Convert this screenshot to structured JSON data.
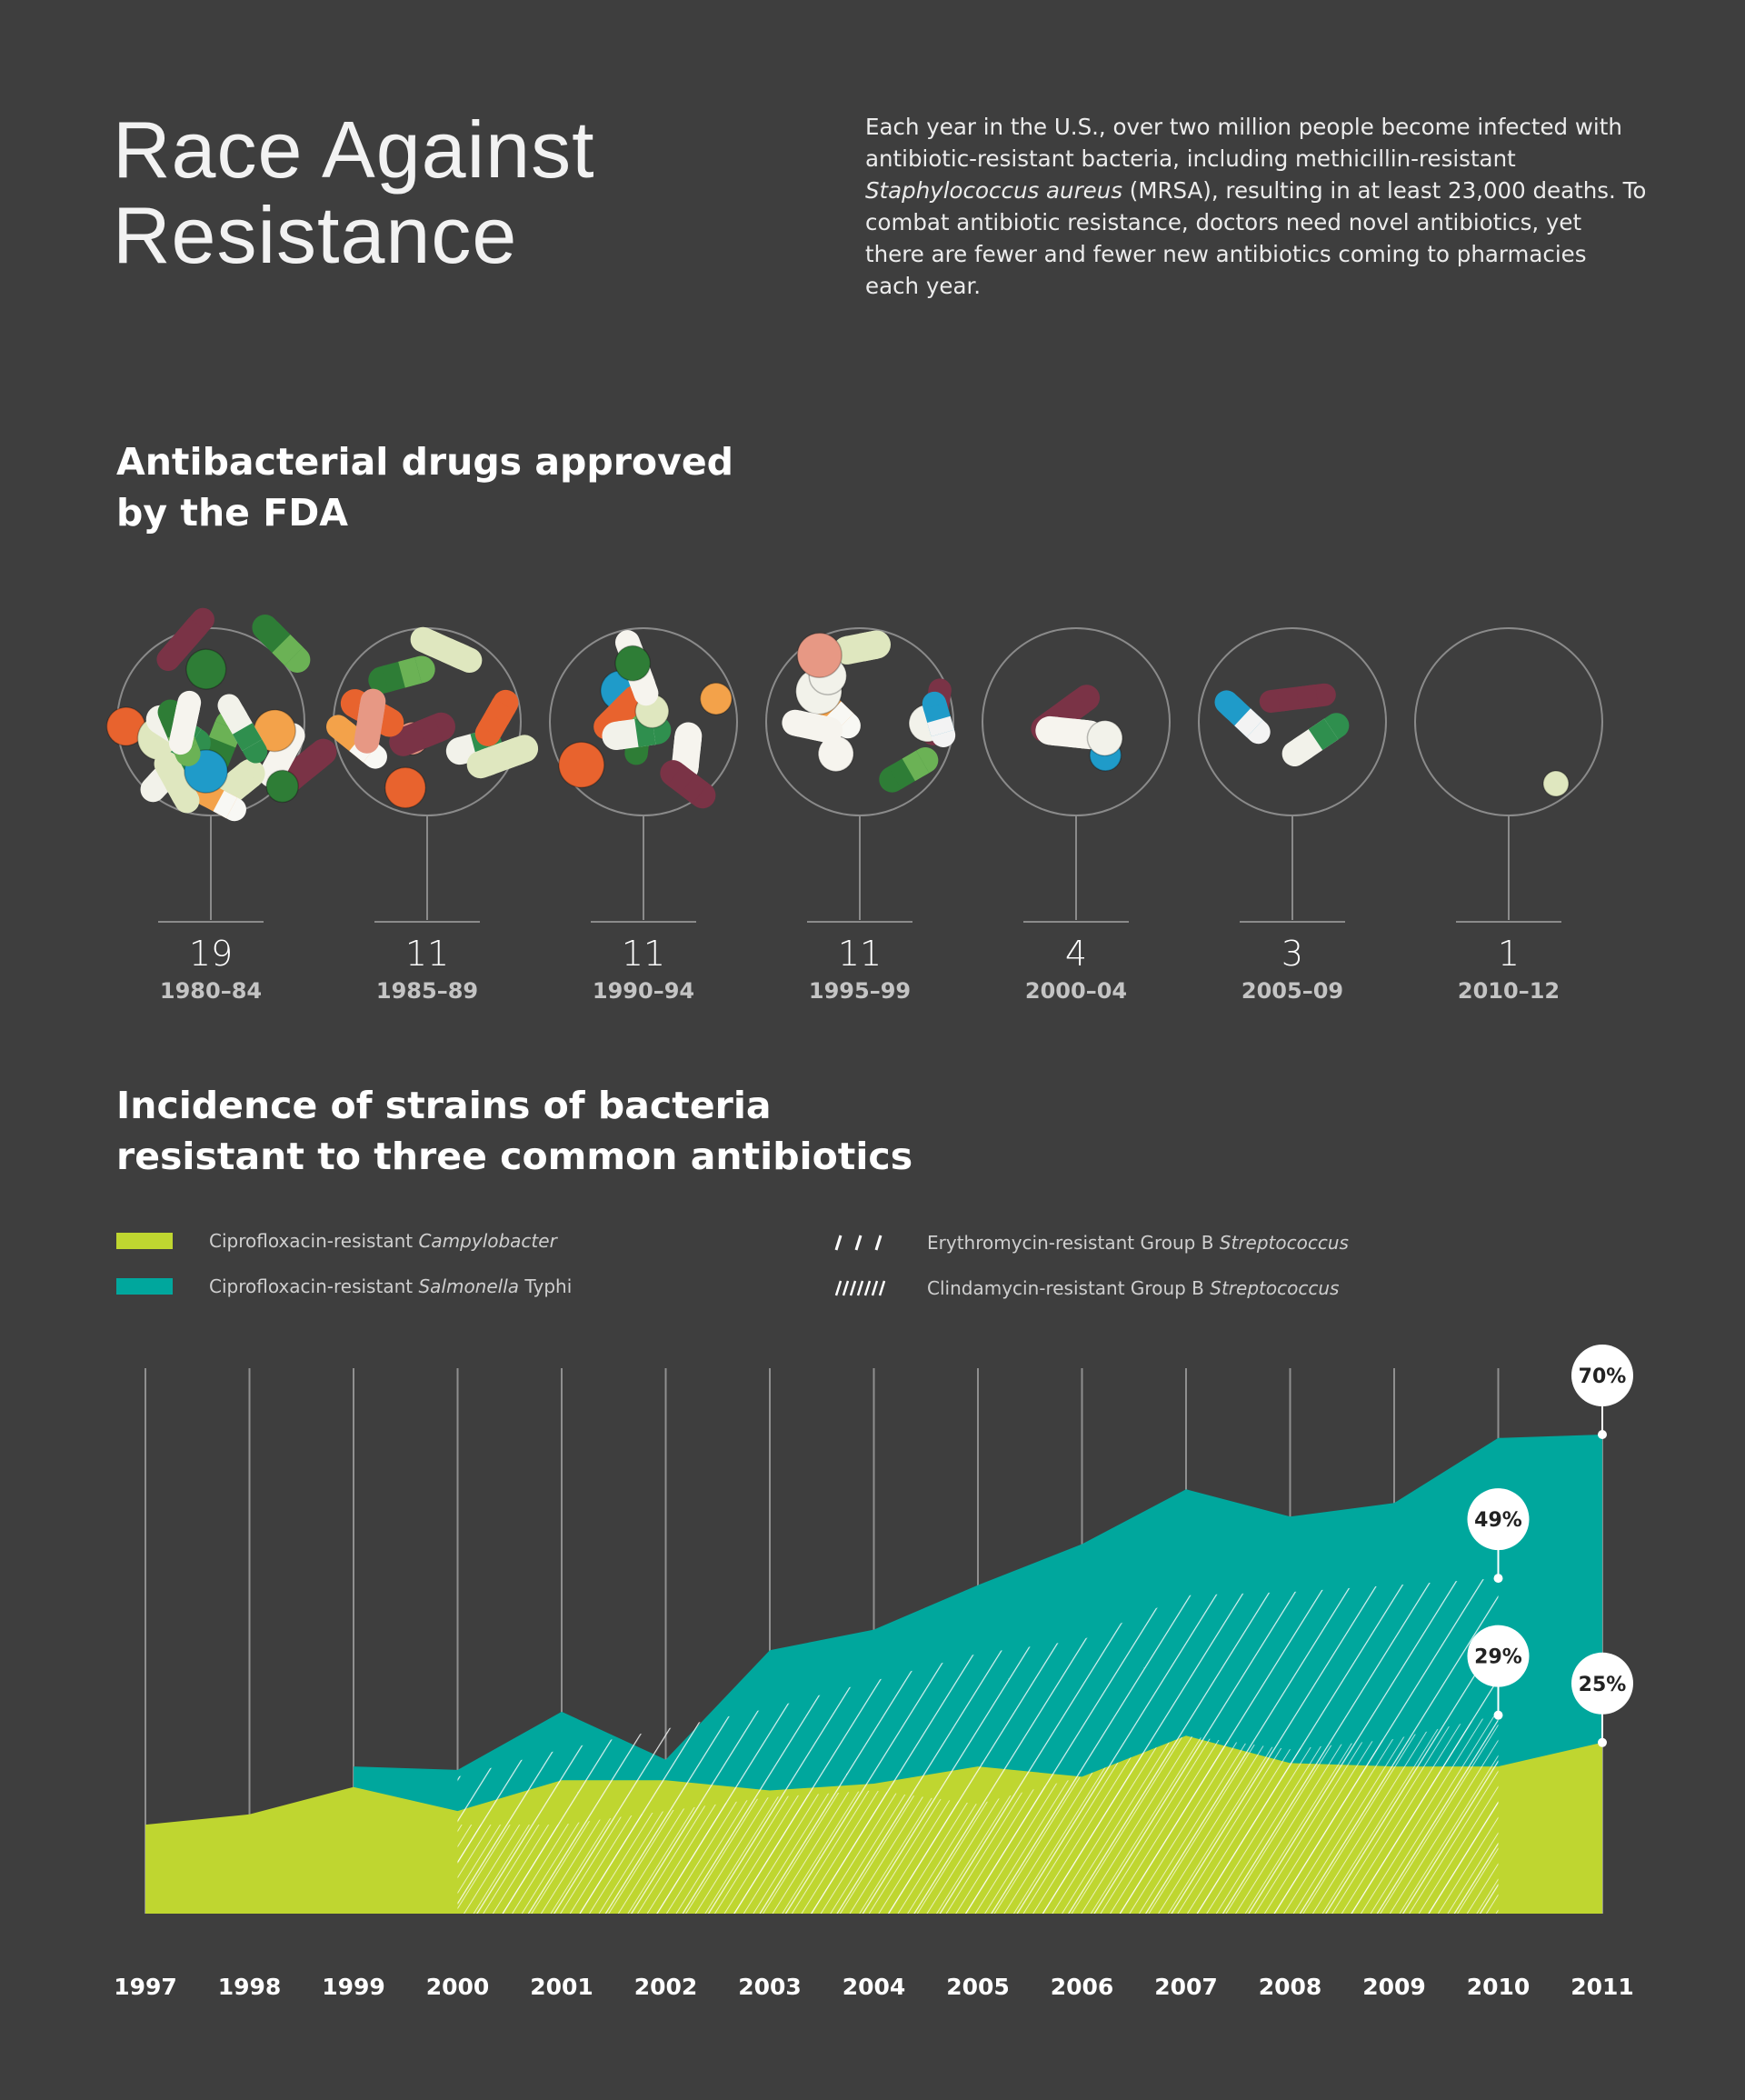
{
  "header": {
    "title_line1": "Race Against",
    "title_line2": "Resistance",
    "intro_part1": "Each year in the U.S., over two million people become infected with antibiotic-resistant bacteria, including methicillin-resistant ",
    "intro_italic": "Staphylococcus aureus",
    "intro_part2": " (MRSA), resulting in at least 23,000 deaths. To combat antibiotic resistance, doctors need novel antibiotics, yet there are fewer and fewer new antibiotics coming to pharmacies each year."
  },
  "fda": {
    "title_line1": "Antibacterial drugs approved",
    "title_line2": "by the FDA"
  },
  "resistance": {
    "title_line1": "Incidence of strains of bacteria",
    "title_line2": "resistant to three common antibiotics"
  },
  "legend": {
    "campylobacter": {
      "prefix": "Ciprofloxacin-resistant ",
      "italic": "Campylobacter",
      "suffix": ""
    },
    "salmonella": {
      "prefix": "Ciprofloxacin-resistant ",
      "italic": "Salmonella",
      "suffix": " Typhi"
    },
    "erythromycin": {
      "prefix": "Erythromycin-resistant Group B ",
      "italic": "Streptococcus",
      "suffix": ""
    },
    "clindamycin": {
      "prefix": "Clindamycin-resistant Group B ",
      "italic": "Streptococcus",
      "suffix": ""
    }
  },
  "colors": {
    "background": "#3e3e3e",
    "campylobacter": "#bfd630",
    "salmonella": "#00a79d",
    "hatch": "#ffffff",
    "gridline": "#8f8f8f"
  },
  "chart_data": [
    {
      "type": "bar",
      "title": "Antibacterial drugs approved by the FDA",
      "categories": [
        "1980–84",
        "1985–89",
        "1990–94",
        "1995–99",
        "2000–04",
        "2005–09",
        "2010–12"
      ],
      "values": [
        19,
        11,
        11,
        11,
        4,
        3,
        1
      ],
      "icon": "pill-icon"
    },
    {
      "type": "area",
      "title": "Incidence of strains of bacteria resistant to three common antibiotics",
      "x": [
        "1997",
        "1998",
        "1999",
        "2000",
        "2001",
        "2002",
        "2003",
        "2004",
        "2005",
        "2006",
        "2007",
        "2008",
        "2009",
        "2010",
        "2011"
      ],
      "y_unit": "%",
      "ylim": [
        0,
        70
      ],
      "grid": true,
      "series": [
        {
          "name": "Ciprofloxacin-resistant Campylobacter",
          "color": "#bfd630",
          "values": [
            13,
            14.5,
            18.5,
            15,
            19.5,
            19.5,
            18,
            19,
            21.5,
            20,
            26,
            22,
            21.5,
            21.5,
            25
          ]
        },
        {
          "name": "Ciprofloxacin-resistant Salmonella Typhi",
          "color": "#00a79d",
          "values": [
            null,
            null,
            21.5,
            21,
            29.5,
            22.5,
            38.5,
            41.5,
            48,
            54,
            62,
            58,
            60,
            69.5,
            70
          ]
        },
        {
          "name": "Erythromycin-resistant Group B Streptococcus",
          "pattern": "wide-hatch",
          "values": [
            null,
            null,
            null,
            20,
            24,
            27,
            30,
            34,
            38,
            40,
            46.5,
            47,
            48,
            49,
            null
          ]
        },
        {
          "name": "Clindamycin-resistant Group B Streptococcus",
          "pattern": "dense-hatch",
          "values": [
            null,
            null,
            null,
            13,
            13,
            15,
            17,
            18,
            16,
            20,
            26,
            24,
            25.5,
            29,
            null
          ]
        }
      ],
      "callouts": [
        {
          "label": "70%",
          "year": "2011",
          "value": 70
        },
        {
          "label": "49%",
          "year": "2010",
          "value": 49
        },
        {
          "label": "29%",
          "year": "2010",
          "value": 29
        },
        {
          "label": "25%",
          "year": "2011",
          "value": 25
        }
      ]
    }
  ]
}
